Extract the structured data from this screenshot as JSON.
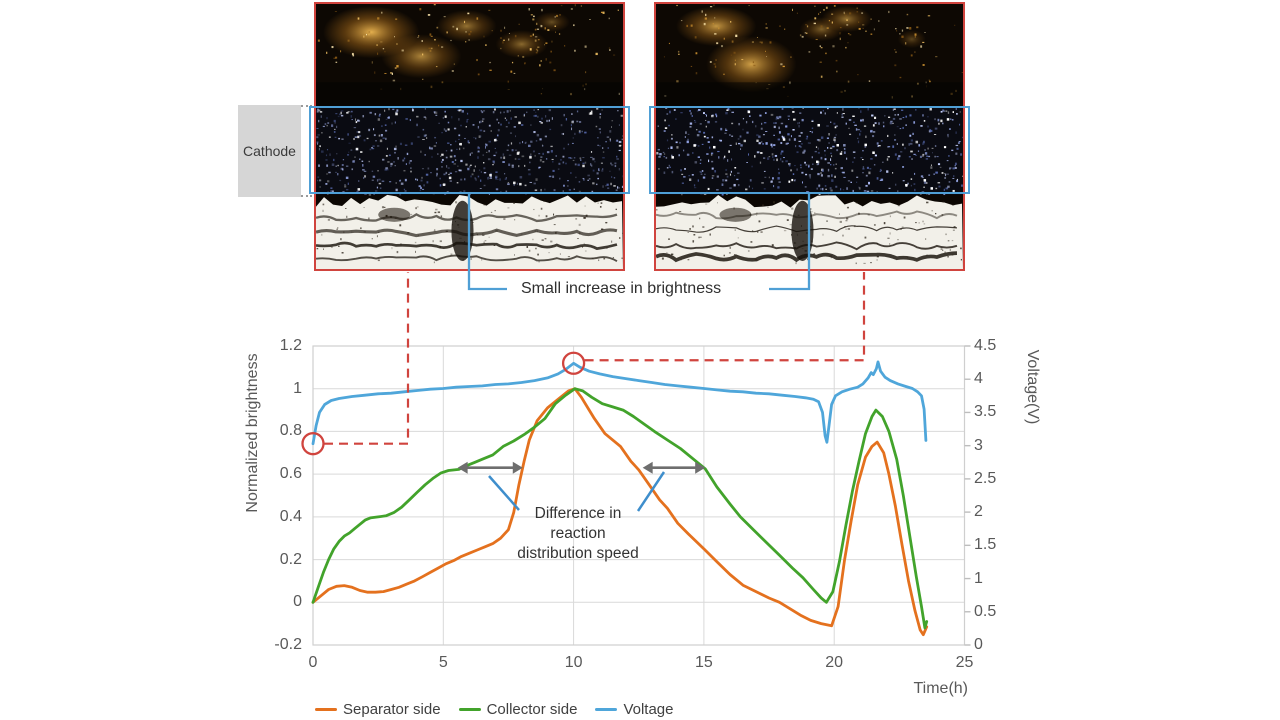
{
  "figure": {
    "cathode_label": "Cathode",
    "brightness_note": "Small increase in brightness",
    "speed_note": {
      "lines": [
        "Difference in",
        "reaction",
        "distribution speed"
      ]
    }
  },
  "chart_data": {
    "type": "line",
    "xlabel": "Time(h)",
    "ylabel_left": "Normalized brightness",
    "ylabel_right": "Voltage(V)",
    "xlim": [
      0,
      25
    ],
    "ylim_left": [
      -0.2,
      1.2
    ],
    "ylim_right": [
      0,
      4.5
    ],
    "x_ticks": [
      "0",
      "5",
      "10",
      "15",
      "20",
      "25"
    ],
    "y_ticks_left": [
      "1.2",
      "1",
      "0.8",
      "0.6",
      "0.4",
      "0.2",
      "0",
      "-0.2"
    ],
    "y_ticks_right": [
      "4.5",
      "4",
      "3.5",
      "3",
      "2.5",
      "2",
      "1.5",
      "1",
      "0.5",
      "0"
    ],
    "grid": true,
    "legend_position": "bottom",
    "series": [
      {
        "name": "Separator side",
        "color": "#e4711e",
        "axis": "left",
        "points": [
          [
            0,
            0
          ],
          [
            0.3,
            0.03
          ],
          [
            0.6,
            0.06
          ],
          [
            0.9,
            0.075
          ],
          [
            1.2,
            0.078
          ],
          [
            1.5,
            0.07
          ],
          [
            1.8,
            0.055
          ],
          [
            2.1,
            0.047
          ],
          [
            2.4,
            0.047
          ],
          [
            2.7,
            0.05
          ],
          [
            3,
            0.06
          ],
          [
            3.3,
            0.07
          ],
          [
            3.6,
            0.085
          ],
          [
            3.9,
            0.1
          ],
          [
            4.2,
            0.12
          ],
          [
            4.5,
            0.14
          ],
          [
            4.8,
            0.16
          ],
          [
            5.1,
            0.18
          ],
          [
            5.4,
            0.195
          ],
          [
            5.7,
            0.215
          ],
          [
            6,
            0.23
          ],
          [
            6.3,
            0.245
          ],
          [
            6.6,
            0.26
          ],
          [
            6.9,
            0.275
          ],
          [
            7.2,
            0.3
          ],
          [
            7.5,
            0.34
          ],
          [
            7.7,
            0.42
          ],
          [
            7.9,
            0.55
          ],
          [
            8.1,
            0.66
          ],
          [
            8.3,
            0.76
          ],
          [
            8.6,
            0.85
          ],
          [
            9,
            0.91
          ],
          [
            9.4,
            0.95
          ],
          [
            9.8,
            0.99
          ],
          [
            10.05,
            1.0
          ],
          [
            10.3,
            0.96
          ],
          [
            10.6,
            0.9
          ],
          [
            10.8,
            0.86
          ],
          [
            11.2,
            0.79
          ],
          [
            11.8,
            0.73
          ],
          [
            12.2,
            0.66
          ],
          [
            12.5,
            0.62
          ],
          [
            12.9,
            0.55
          ],
          [
            13.3,
            0.48
          ],
          [
            13.6,
            0.44
          ],
          [
            14,
            0.37
          ],
          [
            14.4,
            0.32
          ],
          [
            15,
            0.25
          ],
          [
            15.5,
            0.19
          ],
          [
            16,
            0.13
          ],
          [
            16.5,
            0.08
          ],
          [
            17,
            0.05
          ],
          [
            17.5,
            0.02
          ],
          [
            17.9,
            0.0
          ],
          [
            18.3,
            -0.03
          ],
          [
            18.7,
            -0.06
          ],
          [
            19.1,
            -0.085
          ],
          [
            19.5,
            -0.1
          ],
          [
            19.9,
            -0.11
          ],
          [
            20.15,
            -0.02
          ],
          [
            20.4,
            0.2
          ],
          [
            20.65,
            0.38
          ],
          [
            20.9,
            0.55
          ],
          [
            21.2,
            0.68
          ],
          [
            21.45,
            0.73
          ],
          [
            21.65,
            0.75
          ],
          [
            21.9,
            0.7
          ],
          [
            22.1,
            0.6
          ],
          [
            22.35,
            0.45
          ],
          [
            22.6,
            0.27
          ],
          [
            22.85,
            0.1
          ],
          [
            23.1,
            -0.04
          ],
          [
            23.3,
            -0.13
          ],
          [
            23.42,
            -0.152
          ],
          [
            23.55,
            -0.115
          ]
        ]
      },
      {
        "name": "Collector side",
        "color": "#42a32b",
        "axis": "left",
        "points": [
          [
            0,
            0
          ],
          [
            0.2,
            0.07
          ],
          [
            0.4,
            0.14
          ],
          [
            0.6,
            0.2
          ],
          [
            0.8,
            0.25
          ],
          [
            1,
            0.285
          ],
          [
            1.2,
            0.31
          ],
          [
            1.4,
            0.325
          ],
          [
            1.6,
            0.345
          ],
          [
            1.8,
            0.365
          ],
          [
            2,
            0.385
          ],
          [
            2.2,
            0.395
          ],
          [
            2.5,
            0.4
          ],
          [
            2.8,
            0.405
          ],
          [
            3.1,
            0.42
          ],
          [
            3.4,
            0.445
          ],
          [
            3.7,
            0.48
          ],
          [
            4,
            0.515
          ],
          [
            4.3,
            0.55
          ],
          [
            4.6,
            0.58
          ],
          [
            4.9,
            0.605
          ],
          [
            5.2,
            0.617
          ],
          [
            5.6,
            0.622
          ],
          [
            5.9,
            0.64
          ],
          [
            6.2,
            0.655
          ],
          [
            6.5,
            0.67
          ],
          [
            6.9,
            0.69
          ],
          [
            7.3,
            0.73
          ],
          [
            7.7,
            0.755
          ],
          [
            8.1,
            0.785
          ],
          [
            8.5,
            0.82
          ],
          [
            8.9,
            0.86
          ],
          [
            9.3,
            0.93
          ],
          [
            9.7,
            0.97
          ],
          [
            10.05,
            1.0
          ],
          [
            10.35,
            0.99
          ],
          [
            10.7,
            0.96
          ],
          [
            11.1,
            0.93
          ],
          [
            11.5,
            0.915
          ],
          [
            11.9,
            0.9
          ],
          [
            12.3,
            0.87
          ],
          [
            12.7,
            0.835
          ],
          [
            13.1,
            0.8
          ],
          [
            13.6,
            0.76
          ],
          [
            14.1,
            0.72
          ],
          [
            14.6,
            0.67
          ],
          [
            15.05,
            0.625
          ],
          [
            15.5,
            0.54
          ],
          [
            16,
            0.46
          ],
          [
            16.4,
            0.4
          ],
          [
            16.9,
            0.34
          ],
          [
            17.4,
            0.28
          ],
          [
            17.9,
            0.22
          ],
          [
            18.4,
            0.16
          ],
          [
            18.8,
            0.115
          ],
          [
            19.2,
            0.06
          ],
          [
            19.5,
            0.02
          ],
          [
            19.7,
            0.0
          ],
          [
            19.95,
            0.05
          ],
          [
            20.2,
            0.19
          ],
          [
            20.45,
            0.36
          ],
          [
            20.7,
            0.52
          ],
          [
            20.95,
            0.66
          ],
          [
            21.2,
            0.79
          ],
          [
            21.45,
            0.87
          ],
          [
            21.6,
            0.9
          ],
          [
            21.85,
            0.87
          ],
          [
            22.1,
            0.8
          ],
          [
            22.4,
            0.67
          ],
          [
            22.65,
            0.5
          ],
          [
            22.9,
            0.31
          ],
          [
            23.15,
            0.12
          ],
          [
            23.35,
            -0.02
          ],
          [
            23.48,
            -0.12
          ],
          [
            23.55,
            -0.09
          ]
        ]
      },
      {
        "name": "Voltage",
        "color": "#4fa6da",
        "axis": "right",
        "points": [
          [
            0,
            3.03
          ],
          [
            0.12,
            3.3
          ],
          [
            0.25,
            3.5
          ],
          [
            0.45,
            3.62
          ],
          [
            0.7,
            3.68
          ],
          [
            1,
            3.71
          ],
          [
            1.5,
            3.74
          ],
          [
            2,
            3.76
          ],
          [
            2.5,
            3.78
          ],
          [
            3,
            3.79
          ],
          [
            3.5,
            3.81
          ],
          [
            4,
            3.83
          ],
          [
            4.5,
            3.85
          ],
          [
            5,
            3.86
          ],
          [
            5.5,
            3.88
          ],
          [
            6,
            3.89
          ],
          [
            6.5,
            3.9
          ],
          [
            7,
            3.92
          ],
          [
            7.5,
            3.93
          ],
          [
            8,
            3.95
          ],
          [
            8.5,
            3.98
          ],
          [
            9,
            4.02
          ],
          [
            9.4,
            4.08
          ],
          [
            9.7,
            4.15
          ],
          [
            10,
            4.24
          ],
          [
            10.25,
            4.18
          ],
          [
            10.6,
            4.12
          ],
          [
            11,
            4.08
          ],
          [
            11.5,
            4.04
          ],
          [
            12,
            4.01
          ],
          [
            12.5,
            3.98
          ],
          [
            13,
            3.95
          ],
          [
            13.5,
            3.92
          ],
          [
            14,
            3.9
          ],
          [
            14.5,
            3.88
          ],
          [
            15,
            3.86
          ],
          [
            15.5,
            3.84
          ],
          [
            16,
            3.82
          ],
          [
            16.5,
            3.81
          ],
          [
            17,
            3.79
          ],
          [
            17.5,
            3.78
          ],
          [
            18,
            3.76
          ],
          [
            18.5,
            3.74
          ],
          [
            18.9,
            3.72
          ],
          [
            19.2,
            3.7
          ],
          [
            19.4,
            3.66
          ],
          [
            19.55,
            3.5
          ],
          [
            19.65,
            3.15
          ],
          [
            19.72,
            3.05
          ],
          [
            19.8,
            3.3
          ],
          [
            19.9,
            3.62
          ],
          [
            20.05,
            3.75
          ],
          [
            20.3,
            3.81
          ],
          [
            20.6,
            3.85
          ],
          [
            20.9,
            3.88
          ],
          [
            21.1,
            3.93
          ],
          [
            21.3,
            4.02
          ],
          [
            21.42,
            4.1
          ],
          [
            21.5,
            4.07
          ],
          [
            21.62,
            4.16
          ],
          [
            21.68,
            4.26
          ],
          [
            21.78,
            4.12
          ],
          [
            21.95,
            4.03
          ],
          [
            22.15,
            3.98
          ],
          [
            22.45,
            3.93
          ],
          [
            22.75,
            3.89
          ],
          [
            23,
            3.86
          ],
          [
            23.2,
            3.81
          ],
          [
            23.35,
            3.75
          ],
          [
            23.45,
            3.55
          ],
          [
            23.52,
            3.08
          ]
        ]
      }
    ],
    "annotations": {
      "marker_circles": [
        {
          "t": 0,
          "voltage": 3.03
        },
        {
          "t": 10,
          "voltage": 4.24
        }
      ],
      "speed_arrows": [
        {
          "t1": 5.55,
          "t2": 8.05,
          "v": 0.63
        },
        {
          "t1": 12.65,
          "t2": 15.05,
          "v": 0.63
        }
      ]
    }
  },
  "colors": {
    "red_marker": "#d0443e",
    "highlight_blue": "#4f9fd5",
    "pointer_blue": "#3e8ecc",
    "arrow_gray": "#6e6e6e",
    "grid": "#d9d9d9",
    "axis_text": "#595959"
  }
}
